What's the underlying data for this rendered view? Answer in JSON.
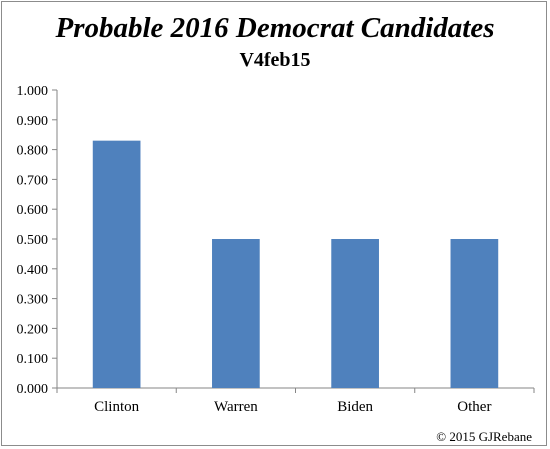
{
  "chart_data": {
    "type": "bar",
    "title": "Probable 2016 Democrat Candidates",
    "subtitle": "V4feb15",
    "categories": [
      "Clinton",
      "Warren",
      "Biden",
      "Other"
    ],
    "values": [
      0.83,
      0.5,
      0.5,
      0.5
    ],
    "ylim": [
      0,
      1
    ],
    "yticks": [
      "0.000",
      "0.100",
      "0.200",
      "0.300",
      "0.400",
      "0.500",
      "0.600",
      "0.700",
      "0.800",
      "0.900",
      "1.000"
    ],
    "bar_color": "#4f81bd",
    "grid": false
  },
  "footer": {
    "copyright": "© 2015  GJRebane"
  }
}
